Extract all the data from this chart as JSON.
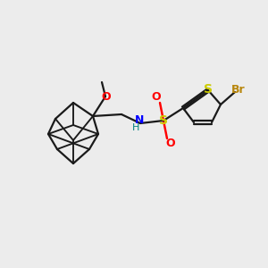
{
  "background_color": "#ececec",
  "figure_size": [
    3.0,
    3.0
  ],
  "dpi": 100,
  "bond_color": "#1a1a1a",
  "bond_lw": 1.6,
  "colors": {
    "O": "#ff0000",
    "N": "#0000ff",
    "H": "#008080",
    "S": "#cccc00",
    "Br": "#b8860b",
    "C": "#1a1a1a"
  }
}
